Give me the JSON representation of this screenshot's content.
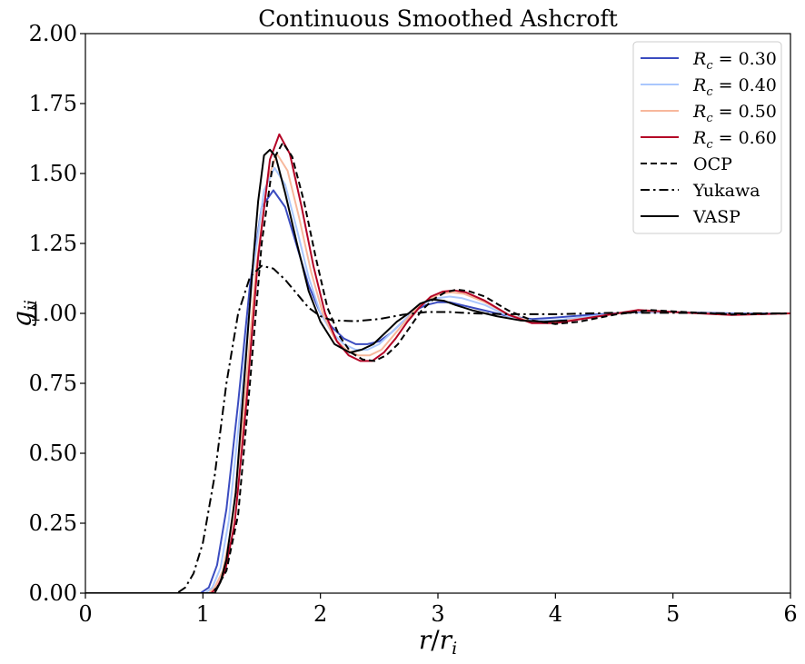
{
  "chart_data": {
    "type": "line",
    "title": "Continuous Smoothed Ashcroft",
    "xlabel": "r/r_i",
    "ylabel": "g_ii",
    "xlim": [
      0,
      6
    ],
    "ylim": [
      0,
      2
    ],
    "xticks": [
      0,
      1,
      2,
      3,
      4,
      5,
      6
    ],
    "xtick_labels": [
      "0",
      "1",
      "2",
      "3",
      "4",
      "5",
      "6"
    ],
    "yticks": [
      0,
      0.25,
      0.5,
      0.75,
      1.0,
      1.25,
      1.5,
      1.75,
      2.0
    ],
    "ytick_labels": [
      "0.00",
      "0.25",
      "0.50",
      "0.75",
      "1.00",
      "1.25",
      "1.50",
      "1.75",
      "2.00"
    ],
    "grid": false,
    "legend_position": "top-right",
    "series": [
      {
        "name": "R_c = 0.30",
        "legend_label": "R_c = 0.30",
        "color": "#3b4cc0",
        "dash": "solid",
        "points": [
          [
            0,
            0
          ],
          [
            0.98,
            0
          ],
          [
            1.05,
            0.02
          ],
          [
            1.12,
            0.1
          ],
          [
            1.2,
            0.3
          ],
          [
            1.3,
            0.68
          ],
          [
            1.4,
            1.1
          ],
          [
            1.5,
            1.38
          ],
          [
            1.6,
            1.44
          ],
          [
            1.7,
            1.38
          ],
          [
            1.8,
            1.24
          ],
          [
            1.9,
            1.1
          ],
          [
            2.0,
            1.0
          ],
          [
            2.1,
            0.95
          ],
          [
            2.2,
            0.91
          ],
          [
            2.3,
            0.89
          ],
          [
            2.4,
            0.89
          ],
          [
            2.5,
            0.9
          ],
          [
            2.6,
            0.93
          ],
          [
            2.7,
            0.97
          ],
          [
            2.8,
            1.01
          ],
          [
            2.9,
            1.03
          ],
          [
            3.0,
            1.04
          ],
          [
            3.1,
            1.04
          ],
          [
            3.2,
            1.03
          ],
          [
            3.4,
            1.01
          ],
          [
            3.6,
            0.99
          ],
          [
            3.8,
            0.98
          ],
          [
            4.0,
            0.985
          ],
          [
            4.3,
            0.995
          ],
          [
            4.7,
            1.005
          ],
          [
            5.0,
            1.005
          ],
          [
            5.5,
            1.0
          ],
          [
            6.0,
            1.0
          ]
        ]
      },
      {
        "name": "R_c = 0.40",
        "legend_label": "R_c = 0.40",
        "color": "#aac7fd",
        "dash": "solid",
        "points": [
          [
            0,
            0
          ],
          [
            1.02,
            0
          ],
          [
            1.08,
            0.02
          ],
          [
            1.15,
            0.09
          ],
          [
            1.22,
            0.26
          ],
          [
            1.32,
            0.66
          ],
          [
            1.42,
            1.13
          ],
          [
            1.52,
            1.44
          ],
          [
            1.61,
            1.52
          ],
          [
            1.7,
            1.46
          ],
          [
            1.8,
            1.3
          ],
          [
            1.9,
            1.13
          ],
          [
            2.0,
            1.0
          ],
          [
            2.1,
            0.93
          ],
          [
            2.2,
            0.89
          ],
          [
            2.3,
            0.87
          ],
          [
            2.4,
            0.87
          ],
          [
            2.5,
            0.89
          ],
          [
            2.6,
            0.93
          ],
          [
            2.7,
            0.97
          ],
          [
            2.8,
            1.01
          ],
          [
            2.9,
            1.04
          ],
          [
            3.0,
            1.055
          ],
          [
            3.1,
            1.06
          ],
          [
            3.2,
            1.055
          ],
          [
            3.4,
            1.03
          ],
          [
            3.6,
            0.99
          ],
          [
            3.8,
            0.975
          ],
          [
            4.0,
            0.975
          ],
          [
            4.3,
            0.99
          ],
          [
            4.7,
            1.008
          ],
          [
            5.0,
            1.005
          ],
          [
            5.5,
            0.998
          ],
          [
            6.0,
            1.0
          ]
        ]
      },
      {
        "name": "R_c = 0.50",
        "legend_label": "R_c = 0.50",
        "color": "#f7b89c",
        "dash": "solid",
        "points": [
          [
            0,
            0
          ],
          [
            1.05,
            0
          ],
          [
            1.1,
            0.02
          ],
          [
            1.17,
            0.08
          ],
          [
            1.25,
            0.25
          ],
          [
            1.35,
            0.66
          ],
          [
            1.45,
            1.15
          ],
          [
            1.55,
            1.48
          ],
          [
            1.63,
            1.57
          ],
          [
            1.72,
            1.51
          ],
          [
            1.82,
            1.34
          ],
          [
            1.92,
            1.15
          ],
          [
            2.02,
            1.0
          ],
          [
            2.12,
            0.91
          ],
          [
            2.22,
            0.87
          ],
          [
            2.32,
            0.85
          ],
          [
            2.42,
            0.85
          ],
          [
            2.52,
            0.87
          ],
          [
            2.62,
            0.92
          ],
          [
            2.72,
            0.97
          ],
          [
            2.82,
            1.02
          ],
          [
            2.92,
            1.05
          ],
          [
            3.02,
            1.07
          ],
          [
            3.12,
            1.075
          ],
          [
            3.22,
            1.07
          ],
          [
            3.4,
            1.04
          ],
          [
            3.6,
            0.995
          ],
          [
            3.8,
            0.97
          ],
          [
            4.0,
            0.97
          ],
          [
            4.3,
            0.985
          ],
          [
            4.7,
            1.01
          ],
          [
            5.0,
            1.005
          ],
          [
            5.5,
            0.996
          ],
          [
            6.0,
            1.0
          ]
        ]
      },
      {
        "name": "R_c = 0.60",
        "legend_label": "R_c = 0.60",
        "color": "#b40426",
        "dash": "solid",
        "points": [
          [
            0,
            0
          ],
          [
            1.07,
            0
          ],
          [
            1.12,
            0.02
          ],
          [
            1.19,
            0.08
          ],
          [
            1.27,
            0.25
          ],
          [
            1.37,
            0.68
          ],
          [
            1.47,
            1.2
          ],
          [
            1.57,
            1.55
          ],
          [
            1.65,
            1.64
          ],
          [
            1.74,
            1.57
          ],
          [
            1.84,
            1.38
          ],
          [
            1.94,
            1.17
          ],
          [
            2.04,
            1.0
          ],
          [
            2.14,
            0.9
          ],
          [
            2.24,
            0.85
          ],
          [
            2.34,
            0.83
          ],
          [
            2.44,
            0.83
          ],
          [
            2.54,
            0.86
          ],
          [
            2.64,
            0.91
          ],
          [
            2.74,
            0.97
          ],
          [
            2.84,
            1.02
          ],
          [
            2.94,
            1.06
          ],
          [
            3.04,
            1.078
          ],
          [
            3.14,
            1.082
          ],
          [
            3.24,
            1.075
          ],
          [
            3.4,
            1.045
          ],
          [
            3.6,
            0.995
          ],
          [
            3.8,
            0.965
          ],
          [
            4.0,
            0.965
          ],
          [
            4.3,
            0.985
          ],
          [
            4.7,
            1.012
          ],
          [
            5.0,
            1.005
          ],
          [
            5.5,
            0.994
          ],
          [
            6.0,
            1.0
          ]
        ]
      },
      {
        "name": "OCP",
        "legend_label": "OCP",
        "color": "#000000",
        "dash": "dashed",
        "points": [
          [
            0,
            0
          ],
          [
            1.07,
            0
          ],
          [
            1.12,
            0.02
          ],
          [
            1.2,
            0.08
          ],
          [
            1.3,
            0.28
          ],
          [
            1.4,
            0.75
          ],
          [
            1.5,
            1.25
          ],
          [
            1.6,
            1.55
          ],
          [
            1.68,
            1.61
          ],
          [
            1.76,
            1.56
          ],
          [
            1.86,
            1.4
          ],
          [
            1.96,
            1.2
          ],
          [
            2.06,
            1.02
          ],
          [
            2.16,
            0.92
          ],
          [
            2.26,
            0.86
          ],
          [
            2.36,
            0.835
          ],
          [
            2.46,
            0.83
          ],
          [
            2.56,
            0.85
          ],
          [
            2.66,
            0.89
          ],
          [
            2.76,
            0.95
          ],
          [
            2.86,
            1.01
          ],
          [
            2.96,
            1.05
          ],
          [
            3.06,
            1.075
          ],
          [
            3.16,
            1.085
          ],
          [
            3.26,
            1.08
          ],
          [
            3.4,
            1.06
          ],
          [
            3.6,
            1.01
          ],
          [
            3.8,
            0.975
          ],
          [
            4.0,
            0.962
          ],
          [
            4.2,
            0.97
          ],
          [
            4.5,
            0.995
          ],
          [
            4.8,
            1.012
          ],
          [
            5.1,
            1.005
          ],
          [
            5.5,
            0.996
          ],
          [
            6.0,
            1.0
          ]
        ]
      },
      {
        "name": "Yukawa",
        "legend_label": "Yukawa",
        "color": "#000000",
        "dash": "dashdot",
        "points": [
          [
            0,
            0
          ],
          [
            0.78,
            0
          ],
          [
            0.85,
            0.02
          ],
          [
            0.92,
            0.07
          ],
          [
            1.0,
            0.18
          ],
          [
            1.1,
            0.42
          ],
          [
            1.2,
            0.75
          ],
          [
            1.3,
            1.0
          ],
          [
            1.4,
            1.13
          ],
          [
            1.5,
            1.17
          ],
          [
            1.6,
            1.16
          ],
          [
            1.7,
            1.12
          ],
          [
            1.8,
            1.07
          ],
          [
            1.9,
            1.02
          ],
          [
            2.0,
            0.99
          ],
          [
            2.1,
            0.975
          ],
          [
            2.3,
            0.972
          ],
          [
            2.5,
            0.98
          ],
          [
            2.7,
            0.995
          ],
          [
            2.9,
            1.005
          ],
          [
            3.1,
            1.005
          ],
          [
            3.3,
            1.0
          ],
          [
            3.6,
            0.997
          ],
          [
            4.0,
            0.997
          ],
          [
            4.5,
            1.002
          ],
          [
            5.0,
            1.002
          ],
          [
            5.5,
            1.0
          ],
          [
            6.0,
            1.0
          ]
        ]
      },
      {
        "name": "VASP",
        "legend_label": "VASP",
        "color": "#000000",
        "dash": "solid",
        "points": [
          [
            0,
            0
          ],
          [
            1.1,
            0
          ],
          [
            1.15,
            0.04
          ],
          [
            1.2,
            0.12
          ],
          [
            1.28,
            0.36
          ],
          [
            1.35,
            0.75
          ],
          [
            1.42,
            1.15
          ],
          [
            1.47,
            1.4
          ],
          [
            1.52,
            1.565
          ],
          [
            1.57,
            1.585
          ],
          [
            1.62,
            1.56
          ],
          [
            1.7,
            1.43
          ],
          [
            1.8,
            1.25
          ],
          [
            1.9,
            1.08
          ],
          [
            2.0,
            0.97
          ],
          [
            2.12,
            0.89
          ],
          [
            2.25,
            0.86
          ],
          [
            2.35,
            0.87
          ],
          [
            2.45,
            0.89
          ],
          [
            2.55,
            0.93
          ],
          [
            2.65,
            0.97
          ],
          [
            2.75,
            1.0
          ],
          [
            2.85,
            1.035
          ],
          [
            2.95,
            1.05
          ],
          [
            3.05,
            1.045
          ],
          [
            3.15,
            1.03
          ],
          [
            3.3,
            1.01
          ],
          [
            3.5,
            0.99
          ],
          [
            3.7,
            0.975
          ],
          [
            3.9,
            0.97
          ],
          [
            4.1,
            0.975
          ]
        ]
      }
    ]
  }
}
